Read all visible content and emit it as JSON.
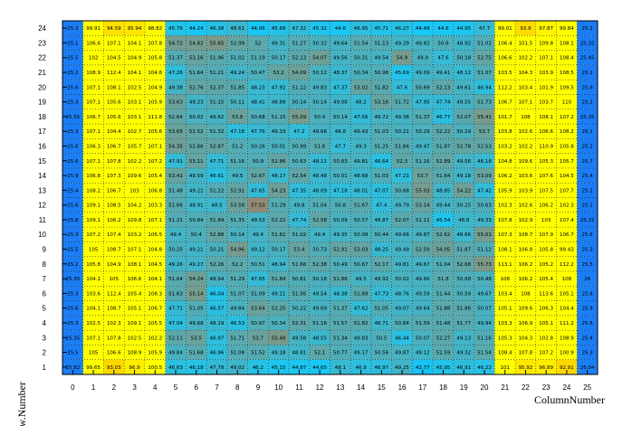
{
  "chart_data": {
    "type": "heatmap",
    "xlabel": "ColumnNumber",
    "ylabel": "Row.Number",
    "x_ticks": [
      "0",
      "1",
      "2",
      "3",
      "4",
      "5",
      "6",
      "7",
      "8",
      "9",
      "10",
      "11",
      "12",
      "13",
      "14",
      "15",
      "16",
      "17",
      "18",
      "19",
      "20",
      "21",
      "22",
      "23",
      "24",
      "25"
    ],
    "y_ticks": [
      "1",
      "2",
      "3",
      "4",
      "5",
      "6",
      "7",
      "8",
      "9",
      "10",
      "11",
      "12",
      "13",
      "14",
      "15",
      "16",
      "17",
      "18",
      "19",
      "20",
      "21",
      "22",
      "23",
      "24"
    ],
    "colorscale": {
      "min": 0,
      "max": 100,
      "stops": [
        "#4a17d8",
        "#3a3af0",
        "#1c6ef2",
        "#1aa0f5",
        "#18c8f5",
        "#7a9a8a",
        "#ff4020",
        "#ff8000",
        "#ffc000",
        "#ffff00"
      ]
    },
    "gridlines": true,
    "rows": [
      {
        "row": 24,
        "values": [
          25.3,
          99.91,
          94.59,
          95.94,
          98.82,
          45.76,
          44.24,
          46.38,
          48.61,
          44.06,
          45.89,
          47.32,
          45.32,
          44.6,
          46.95,
          45.71,
          46.27,
          44.49,
          44.6,
          44.95,
          47.7,
          99.01,
          93.9,
          97.87,
          99.84,
          25.2
        ]
      },
      {
        "row": 23,
        "values": [
          25.1,
          106.6,
          107.1,
          104.1,
          107.8,
          54.72,
          54.82,
          55.65,
          52.99,
          52,
          49.31,
          51.27,
          50.32,
          49.64,
          51.54,
          51.13,
          49.29,
          49.82,
          50.6,
          48.92,
          51.02,
          106.4,
          101.5,
          109.8,
          108.1,
          25.32
        ]
      },
      {
        "row": 22,
        "values": [
          25.5,
          102,
          104.5,
          104.9,
          105.8,
          51.37,
          53.16,
          51.96,
          51.02,
          51.19,
          50.17,
          52.13,
          54.07,
          49.56,
          50.31,
          49.54,
          54.9,
          49.9,
          47.6,
          50.18,
          52.75,
          106.6,
          102.2,
          107.1,
          108.4,
          25.45
        ]
      },
      {
        "row": 21,
        "values": [
          25.2,
          108.9,
          112.4,
          104.1,
          104.6,
          47.26,
          51.64,
          51.21,
          49.24,
          50.47,
          53.2,
          54.09,
          50.12,
          48.37,
          50.34,
          50.98,
          45.69,
          49.09,
          49.41,
          48.12,
          51.07,
          103.5,
          104.3,
          103.9,
          108.5,
          25.1
        ]
      },
      {
        "row": 20,
        "values": [
          25.6,
          107.1,
          108.1,
          102.5,
          104.9,
          49.38,
          52.76,
          52.37,
          51.85,
          48.23,
          47.92,
          51.12,
          49.83,
          47.37,
          53.02,
          51.82,
          47.6,
          50.69,
          52.13,
          49.61,
          46.94,
          112.2,
          103.4,
          101.9,
          109.5,
          25.8
        ]
      },
      {
        "row": 19,
        "values": [
          25.3,
          107.1,
          105.6,
          103.1,
          105.9,
          53.63,
          49.23,
          51.15,
          50.11,
          48.41,
          48.89,
          50.14,
          50.14,
          49.08,
          48.2,
          53.16,
          51.72,
          47.95,
          47.74,
          49.55,
          51.73,
          106.7,
          107.1,
          103.7,
          110,
          25.2
        ]
      },
      {
        "row": 18,
        "values": [
          25.55,
          106.7,
          105.6,
          103.1,
          111.8,
          52.64,
          50.02,
          49.62,
          53.8,
          50.68,
          51.15,
          55.09,
          50.4,
          50.14,
          47.56,
          49.72,
          49.38,
          51.37,
          46.77,
          52.07,
          55.41,
          101.7,
          108,
          108.1,
          107.2,
          25.35
        ]
      },
      {
        "row": 17,
        "values": [
          25.3,
          107.1,
          104.4,
          102.7,
          105.6,
          53.65,
          52.52,
          51.32,
          47.18,
          47.76,
          49.33,
          47.2,
          49.66,
          48.8,
          49.43,
          51.03,
          50.21,
          50.29,
          52.22,
          50.19,
          53.7,
          103.8,
          102.6,
          106.6,
          108.2,
          26.1
        ]
      },
      {
        "row": 16,
        "values": [
          25.6,
          106.3,
          106.7,
          105.7,
          107.1,
          54.35,
          52.66,
          52.87,
          51.2,
          50.26,
          50.01,
          50.99,
          51.6,
          47.7,
          49.3,
          51.25,
          51.84,
          49.47,
          51.87,
          52.78,
          52.53,
          103.2,
          102.2,
          110.9,
          105.8,
          25.2
        ]
      },
      {
        "row": 15,
        "values": [
          25.6,
          107.1,
          107.8,
          102.2,
          107.2,
          47.91,
          53.11,
          47.71,
          51.16,
          50.9,
          52.86,
          50.63,
          48.11,
          50.83,
          49.81,
          46.64,
          52.3,
          51.16,
          52.89,
          49.56,
          48.18,
          104.8,
          109.6,
          105.3,
          105.7,
          25.7
        ]
      },
      {
        "row": 14,
        "values": [
          25.9,
          106.8,
          107.3,
          109.6,
          105.4,
          53.41,
          49.59,
          46.61,
          49.5,
          52.67,
          48.17,
          52.54,
          48.48,
          50.01,
          48.68,
          51.03,
          47.21,
          53.7,
          51.64,
          49.18,
          53.09,
          106.2,
          103.6,
          107.6,
          104.5,
          25.4
        ]
      },
      {
        "row": 13,
        "values": [
          25.4,
          108.2,
          106.7,
          103,
          106.8,
          51.48,
          49.21,
          51.22,
          52.91,
          47.65,
          54.23,
          47.35,
          48.09,
          47.18,
          48.01,
          47.07,
          50.68,
          55.03,
          48.85,
          54.22,
          47.42,
          105.9,
          103.9,
          107.5,
          107.7,
          25.2
        ]
      },
      {
        "row": 12,
        "values": [
          25.6,
          109.1,
          108.5,
          104.2,
          103.3,
          51.66,
          48.91,
          48.5,
          53.58,
          57.53,
          51.29,
          49.8,
          51.04,
          50.8,
          51.67,
          47.4,
          49.79,
          53.14,
          49.44,
          50.25,
          50.63,
          102.3,
          102.6,
          106.2,
          102.3,
          25.1
        ]
      },
      {
        "row": 11,
        "values": [
          25.8,
          109.1,
          106.2,
          109.8,
          107.1,
          51.21,
          50.84,
          51.84,
          51.35,
          49.53,
          52.22,
          47.74,
          52.58,
          50.09,
          50.57,
          48.87,
          52.07,
          51.11,
          45.54,
          48.8,
          49.33,
          107.8,
          102.9,
          103,
          107.4,
          25.15
        ]
      },
      {
        "row": 10,
        "values": [
          25.3,
          107.2,
          107.4,
          103.2,
          106.5,
          49.4,
          50.4,
          52.88,
          50.14,
          49.4,
          51.82,
          51.02,
          49.4,
          49.35,
          50.08,
          50.44,
          49.66,
          49.87,
          52.62,
          48.66,
          55.01,
          107.3,
          108.7,
          107.9,
          106.7,
          25.6
        ]
      },
      {
        "row": 9,
        "values": [
          25.5,
          105,
          108.7,
          107.1,
          104.8,
          50.25,
          49.21,
          50.21,
          54.96,
          49.12,
          50.17,
          53.4,
          50.73,
          52.91,
          53.03,
          48.25,
          49.49,
          52.59,
          54.05,
          51.87,
          51.12,
          108.1,
          106.8,
          105.8,
          99.43,
          25.3
        ]
      },
      {
        "row": 8,
        "values": [
          25.2,
          105.8,
          104.9,
          108.1,
          104.5,
          49.26,
          49.27,
          52.26,
          52.2,
          50.51,
          48.94,
          51.66,
          52.38,
          50.49,
          50.67,
          52.17,
          49.81,
          49.67,
          51.04,
          52.68,
          55.73,
          113.1,
          106.2,
          105.2,
          112.2,
          25.5
        ]
      },
      {
        "row": 7,
        "values": [
          25.35,
          104.1,
          105,
          106.6,
          104.1,
          51.64,
          54.24,
          49.94,
          51.29,
          47.65,
          51.84,
          50.81,
          50.18,
          51.86,
          49.5,
          49.92,
          50.02,
          49.66,
          51.8,
          50.68,
          50.48,
          108,
          106.2,
          105.4,
          108,
          26
        ]
      },
      {
        "row": 6,
        "values": [
          25.3,
          103.6,
          112.4,
          105.4,
          108.3,
          51.63,
          55.14,
          46.04,
          51.07,
          51.09,
          49.11,
          51.56,
          49.54,
          48.38,
          51.69,
          47.73,
          48.76,
          49.59,
          51.44,
          50.59,
          49.67,
          103.4,
          108,
          113.6,
          105.1,
          25.8
        ]
      },
      {
        "row": 5,
        "values": [
          25.6,
          104.1,
          108.7,
          105.1,
          106.7,
          47.71,
          51.05,
          46.57,
          49.84,
          53.64,
          52.25,
          50.22,
          49.69,
          51.37,
          47.62,
          51.05,
          49.07,
          49.64,
          51.88,
          51.86,
          50.07,
          105.1,
          109.6,
          106.3,
          104.4,
          25.9
        ]
      },
      {
        "row": 4,
        "values": [
          25.3,
          102.5,
          102.3,
          109.1,
          105.5,
          47.04,
          49.68,
          48.19,
          46.53,
          50.97,
          50.34,
          52.31,
          51.16,
          51.57,
          51.82,
          48.71,
          50.84,
          51.59,
          51.48,
          51.77,
          49.94,
          103.3,
          106.9,
          105.1,
          111.2,
          25.6
        ]
      },
      {
        "row": 3,
        "values": [
          25.35,
          107.1,
          107.8,
          102.5,
          102.2,
          52.11,
          53.5,
          46.97,
          51.71,
          53.7,
          55.48,
          49.58,
          48.55,
          51.34,
          49.83,
          50.5,
          46.44,
          50.07,
          52.27,
          49.13,
          51.16,
          105.3,
          104.3,
          102.8,
          108.9,
          25.4
        ]
      },
      {
        "row": 2,
        "values": [
          25.5,
          105,
          106.6,
          108.9,
          105.9,
          49.84,
          51.68,
          46.96,
          51.08,
          51.52,
          49.18,
          48.81,
          52.1,
          50.77,
          49.17,
          50.56,
          49.87,
          49.12,
          51.59,
          49.32,
          51.54,
          108.4,
          107.8,
          107.2,
          100.9,
          25.3
        ]
      },
      {
        "row": 1,
        "values": [
          25.82,
          99.65,
          93.03,
          96.9,
          100.5,
          46.63,
          46.18,
          47.78,
          49.02,
          46.2,
          45.15,
          44.87,
          44.65,
          48.1,
          46.9,
          46.97,
          49.25,
          42.77,
          45.95,
          46.91,
          46.22,
          101,
          95.92,
          96.89,
          92.91,
          26.04
        ]
      }
    ]
  }
}
